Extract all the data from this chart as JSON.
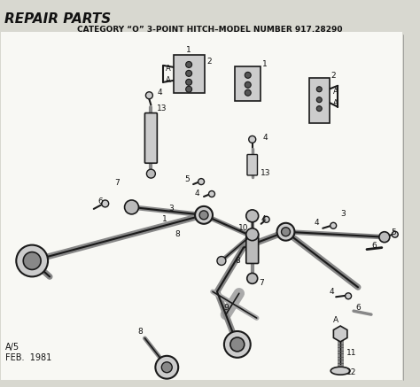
{
  "title": "REPAIR PARTS",
  "subtitle": "CATEGORY “O” 3-POINT HITCH–MODEL NUMBER 917.28290",
  "footer_line1": "A/5",
  "footer_line2": "FEB.  1981",
  "bg_color": "#d8d8d0",
  "draw_color": "#1a1a1a",
  "fig_width": 4.74,
  "fig_height": 4.37,
  "dpi": 100
}
